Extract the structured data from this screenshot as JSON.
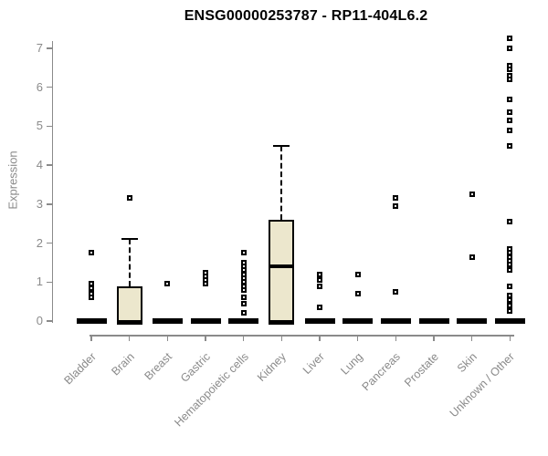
{
  "chart_data": {
    "type": "boxplot",
    "title": "ENSG00000253787 - RP11-404L6.2",
    "ylabel": "Expression",
    "ylim": [
      0,
      7
    ],
    "yticks": [
      0,
      1,
      2,
      3,
      4,
      5,
      6,
      7
    ],
    "grid": false,
    "legend": false,
    "categories": [
      "Bladder",
      "Brain",
      "Breast",
      "Gastric",
      "Hematopoietic cells",
      "Kidney",
      "Liver",
      "Lung",
      "Pancreas",
      "Prostate",
      "Skin",
      "Unknown / Other"
    ],
    "series": [
      {
        "name": "Bladder",
        "q1": 0,
        "median": 0,
        "q3": 0,
        "whisker_low": 0,
        "whisker_high": 0,
        "outliers": [
          1.75,
          0.95,
          0.85,
          0.7,
          0.6
        ]
      },
      {
        "name": "Brain",
        "q1": 0,
        "median": 0,
        "q3": 0.9,
        "whisker_low": 0,
        "whisker_high": 2.1,
        "outliers": [
          3.15
        ]
      },
      {
        "name": "Breast",
        "q1": 0,
        "median": 0,
        "q3": 0,
        "whisker_low": 0,
        "whisker_high": 0,
        "outliers": [
          0.95
        ]
      },
      {
        "name": "Gastric",
        "q1": 0,
        "median": 0,
        "q3": 0,
        "whisker_low": 0,
        "whisker_high": 0,
        "outliers": [
          1.25,
          1.15,
          1.05,
          0.95
        ]
      },
      {
        "name": "Hematopoietic cells",
        "q1": 0,
        "median": 0,
        "q3": 0,
        "whisker_low": 0,
        "whisker_high": 0,
        "outliers": [
          1.75,
          1.5,
          1.4,
          1.3,
          1.2,
          1.1,
          1.0,
          0.9,
          0.8,
          0.6,
          0.45,
          0.2
        ]
      },
      {
        "name": "Kidney",
        "q1": 0,
        "median": 1.4,
        "q3": 2.6,
        "whisker_low": 0,
        "whisker_high": 4.5,
        "outliers": []
      },
      {
        "name": "Liver",
        "q1": 0,
        "median": 0,
        "q3": 0,
        "whisker_low": 0,
        "whisker_high": 0,
        "outliers": [
          1.2,
          1.05,
          0.9,
          0.35
        ]
      },
      {
        "name": "Lung",
        "q1": 0,
        "median": 0,
        "q3": 0,
        "whisker_low": 0,
        "whisker_high": 0,
        "outliers": [
          1.2,
          0.7
        ]
      },
      {
        "name": "Pancreas",
        "q1": 0,
        "median": 0,
        "q3": 0,
        "whisker_low": 0,
        "whisker_high": 0,
        "outliers": [
          3.15,
          2.95,
          0.75
        ]
      },
      {
        "name": "Prostate",
        "q1": 0,
        "median": 0,
        "q3": 0,
        "whisker_low": 0,
        "whisker_high": 0,
        "outliers": []
      },
      {
        "name": "Skin",
        "q1": 0,
        "median": 0,
        "q3": 0,
        "whisker_low": 0,
        "whisker_high": 0,
        "outliers": [
          3.25,
          1.65
        ]
      },
      {
        "name": "Unknown / Other",
        "q1": 0,
        "median": 0,
        "q3": 0,
        "whisker_low": 0,
        "whisker_high": 0,
        "outliers": [
          7.25,
          7.0,
          6.55,
          6.45,
          6.3,
          6.2,
          5.7,
          5.35,
          5.15,
          4.9,
          4.5,
          2.55,
          1.85,
          1.75,
          1.65,
          1.55,
          1.45,
          1.3,
          0.9,
          0.65,
          0.55,
          0.4,
          0.25
        ]
      }
    ],
    "colors": {
      "box_fill": "#ece7cd",
      "box_border": "#000000",
      "outlier": "#000000",
      "axis": "#8a8a8a",
      "title_text": "#000000",
      "label_text": "#8a8a8a",
      "background": "#ffffff"
    }
  }
}
